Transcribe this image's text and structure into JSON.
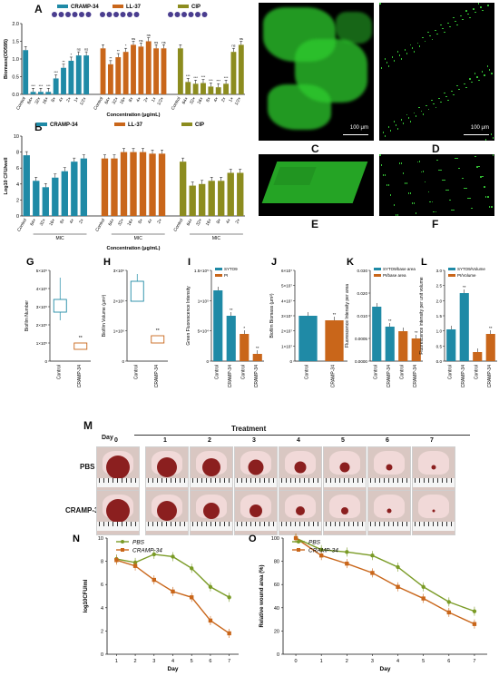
{
  "panels": {
    "A": "A",
    "B": "B",
    "C": "C",
    "D": "D",
    "E": "E",
    "F": "F",
    "G": "G",
    "H": "H",
    "I": "I",
    "J": "J",
    "K": "K",
    "L": "L",
    "M": "M",
    "N": "N",
    "O": "O"
  },
  "colors": {
    "teal": "#1f8aa6",
    "orange": "#c9661a",
    "olive": "#8c8c1f",
    "green": "#7a9b26"
  },
  "panelA": {
    "legend": [
      "CRAMP-34",
      "LL-37",
      "CIP"
    ],
    "ylabel": "Biomass(OD595)",
    "xlabel": "Concentration (μg/mL)",
    "groups": [
      {
        "name": "CRAMP-34",
        "color": "#1f8aa6",
        "categories": [
          "Control",
          "64×",
          "32×",
          "16×",
          "8×",
          "4×",
          "2×",
          "1×",
          "1/2×"
        ],
        "values": [
          1.25,
          0.07,
          0.07,
          0.07,
          0.45,
          0.75,
          0.95,
          1.1,
          1.1
        ],
        "stars": [
          "",
          "***",
          "***",
          "***",
          "***",
          "**",
          "*",
          "ns",
          "ns"
        ]
      },
      {
        "name": "LL-37",
        "color": "#c9661a",
        "categories": [
          "Control",
          "64×",
          "32×",
          "16×",
          "8×",
          "4×",
          "2×",
          "1×",
          "1/2×"
        ],
        "values": [
          1.3,
          0.85,
          1.05,
          1.2,
          1.4,
          1.35,
          1.5,
          1.3,
          1.3
        ],
        "stars": [
          "",
          "**",
          "**",
          "*",
          "ns",
          "ns",
          "ns",
          "ns",
          "ns"
        ]
      },
      {
        "name": "CIP",
        "color": "#8c8c1f",
        "categories": [
          "Control",
          "64×",
          "32×",
          "16×",
          "8×",
          "4×",
          "2×",
          "1×",
          "1/2×"
        ],
        "values": [
          1.3,
          0.35,
          0.3,
          0.32,
          0.22,
          0.2,
          0.3,
          1.2,
          1.4
        ],
        "stars": [
          "",
          "***",
          "***",
          "***",
          "***",
          "***",
          "***",
          "ns",
          "ns"
        ]
      }
    ],
    "ylim": [
      0,
      2.0
    ],
    "yticks": [
      "0.0",
      "0.5",
      "1.0",
      "1.5",
      "2.0"
    ]
  },
  "panelB": {
    "legend": [
      "CRAMP-34",
      "LL-37",
      "CIP"
    ],
    "ylabel": "Log10 CFU/well",
    "xlabel": "Concentration (μg/mL)",
    "mic_label": "MIC",
    "groups": [
      {
        "name": "CRAMP-34",
        "color": "#1f8aa6",
        "categories": [
          "Control",
          "64×",
          "32×",
          "16×",
          "8×",
          "4×",
          "2×"
        ],
        "values": [
          7.6,
          4.4,
          3.6,
          4.8,
          5.6,
          6.8,
          7.2
        ]
      },
      {
        "name": "LL-37",
        "color": "#c9661a",
        "categories": [
          "Control",
          "64×",
          "32×",
          "16×",
          "8×",
          "4×",
          "2×"
        ],
        "values": [
          7.2,
          7.2,
          8.0,
          8.0,
          8.0,
          7.8,
          7.8
        ]
      },
      {
        "name": "CIP",
        "color": "#8c8c1f",
        "categories": [
          "Control",
          "64×",
          "32×",
          "16×",
          "8×",
          "4×",
          "2×"
        ],
        "values": [
          6.8,
          3.8,
          4.0,
          4.4,
          4.4,
          5.4,
          5.4
        ]
      }
    ],
    "ylim": [
      0,
      10
    ],
    "yticks": [
      "0",
      "2",
      "4",
      "6",
      "8",
      "10"
    ]
  },
  "scalebar": {
    "C": "100 μm",
    "D": "100 μm"
  },
  "panelG": {
    "ylabel": "Biofilm Number",
    "categories": [
      "Control",
      "CRAMP-34"
    ],
    "yticks": [
      "0",
      "1×10⁵",
      "2×10⁵",
      "3×10⁵",
      "4×10⁵",
      "5×10⁵"
    ],
    "star": "**"
  },
  "panelH": {
    "ylabel": "Biofilm Volume (μm³)",
    "categories": [
      "Control",
      "CRAMP-34"
    ],
    "yticks": [
      "0",
      "1×10⁶",
      "2×10⁶",
      "3×10⁶"
    ],
    "star": "**"
  },
  "panelI": {
    "ylabel": "Green Fluorescence Intensity",
    "legend": [
      "SYTO9",
      "PI"
    ],
    "categories": [
      "Control",
      "CRAMP-34",
      "Control",
      "CRAMP-34"
    ],
    "yticks": [
      "0",
      "5×10⁴",
      "1×10⁵",
      "1.5×10⁵"
    ],
    "stars": [
      "",
      "**",
      "*",
      "**"
    ]
  },
  "panelJ": {
    "ylabel": "Biofilm Biomass (μm³)",
    "categories": [
      "Control",
      "CRAMP-34"
    ],
    "yticks": [
      "0",
      "1×10⁷",
      "2×10⁷",
      "3×10⁷",
      "4×10⁷",
      "5×10⁷",
      "6×10⁷"
    ],
    "star": "**"
  },
  "panelK": {
    "ylabel": "Fluorescence Intensity per area",
    "legend": [
      "SYTO9/base area",
      "PI/base area"
    ],
    "categories": [
      "Control",
      "CRAMP-34",
      "Control",
      "CRAMP-34"
    ],
    "yticks": [
      "0.0000",
      "0.0005",
      "0.010",
      "0.020",
      "0.030"
    ],
    "stars": [
      "",
      "**",
      "",
      "**"
    ]
  },
  "panelL": {
    "ylabel": "Fluorescence intensity per unit volume",
    "legend": [
      "SYTO9/Volume",
      "PI/Volume"
    ],
    "categories": [
      "Control",
      "CRAMP-34",
      "Control",
      "CRAMP-34"
    ],
    "yticks": [
      "0.0",
      "0.5",
      "1.0",
      "1.5",
      "2.0",
      "2.5",
      "3.0"
    ],
    "stars": [
      "",
      "**",
      "",
      "**"
    ]
  },
  "panelM": {
    "treatment": "Treatment",
    "day_label": "Day",
    "days": [
      "0",
      "1",
      "2",
      "3",
      "4",
      "5",
      "6",
      "7"
    ],
    "rows": [
      "PBS",
      "CRAMP-34"
    ]
  },
  "panelN": {
    "ylabel": "log10CFU/ml",
    "xlabel": "Day",
    "legend": [
      "PBS",
      "CRAMP-34"
    ],
    "xticks": [
      "1",
      "2",
      "3",
      "4",
      "5",
      "6",
      "7"
    ],
    "yticks": [
      "0",
      "2",
      "4",
      "6",
      "8",
      "10"
    ]
  },
  "panelO": {
    "ylabel": "Relative wound area (%)",
    "xlabel": "Day",
    "legend": [
      "PBS",
      "CRAMP-34"
    ],
    "xticks": [
      "0",
      "1",
      "2",
      "3",
      "4",
      "5",
      "6",
      "7"
    ],
    "yticks": [
      "0",
      "20",
      "40",
      "60",
      "80",
      "100"
    ]
  },
  "chart_data": [
    {
      "type": "line",
      "title": "",
      "xlabel": "Day",
      "ylabel": "log10CFU/ml",
      "x": [
        1,
        2,
        3,
        4,
        5,
        6,
        7
      ],
      "ylim": [
        0,
        10
      ],
      "series": [
        {
          "name": "PBS",
          "values": [
            8.2,
            7.9,
            8.6,
            8.4,
            7.4,
            5.8,
            4.9
          ]
        },
        {
          "name": "CRAMP-34",
          "values": [
            8.1,
            7.6,
            6.4,
            5.4,
            4.9,
            2.9,
            1.8
          ]
        }
      ]
    },
    {
      "type": "line",
      "title": "",
      "xlabel": "Day",
      "ylabel": "Relative wound area (%)",
      "x": [
        0,
        1,
        2,
        3,
        4,
        5,
        6,
        7
      ],
      "ylim": [
        0,
        100
      ],
      "series": [
        {
          "name": "PBS",
          "values": [
            100,
            90,
            88,
            85,
            75,
            58,
            45,
            37
          ]
        },
        {
          "name": "CRAMP-34",
          "values": [
            100,
            85,
            78,
            70,
            58,
            48,
            36,
            26
          ]
        }
      ]
    }
  ]
}
